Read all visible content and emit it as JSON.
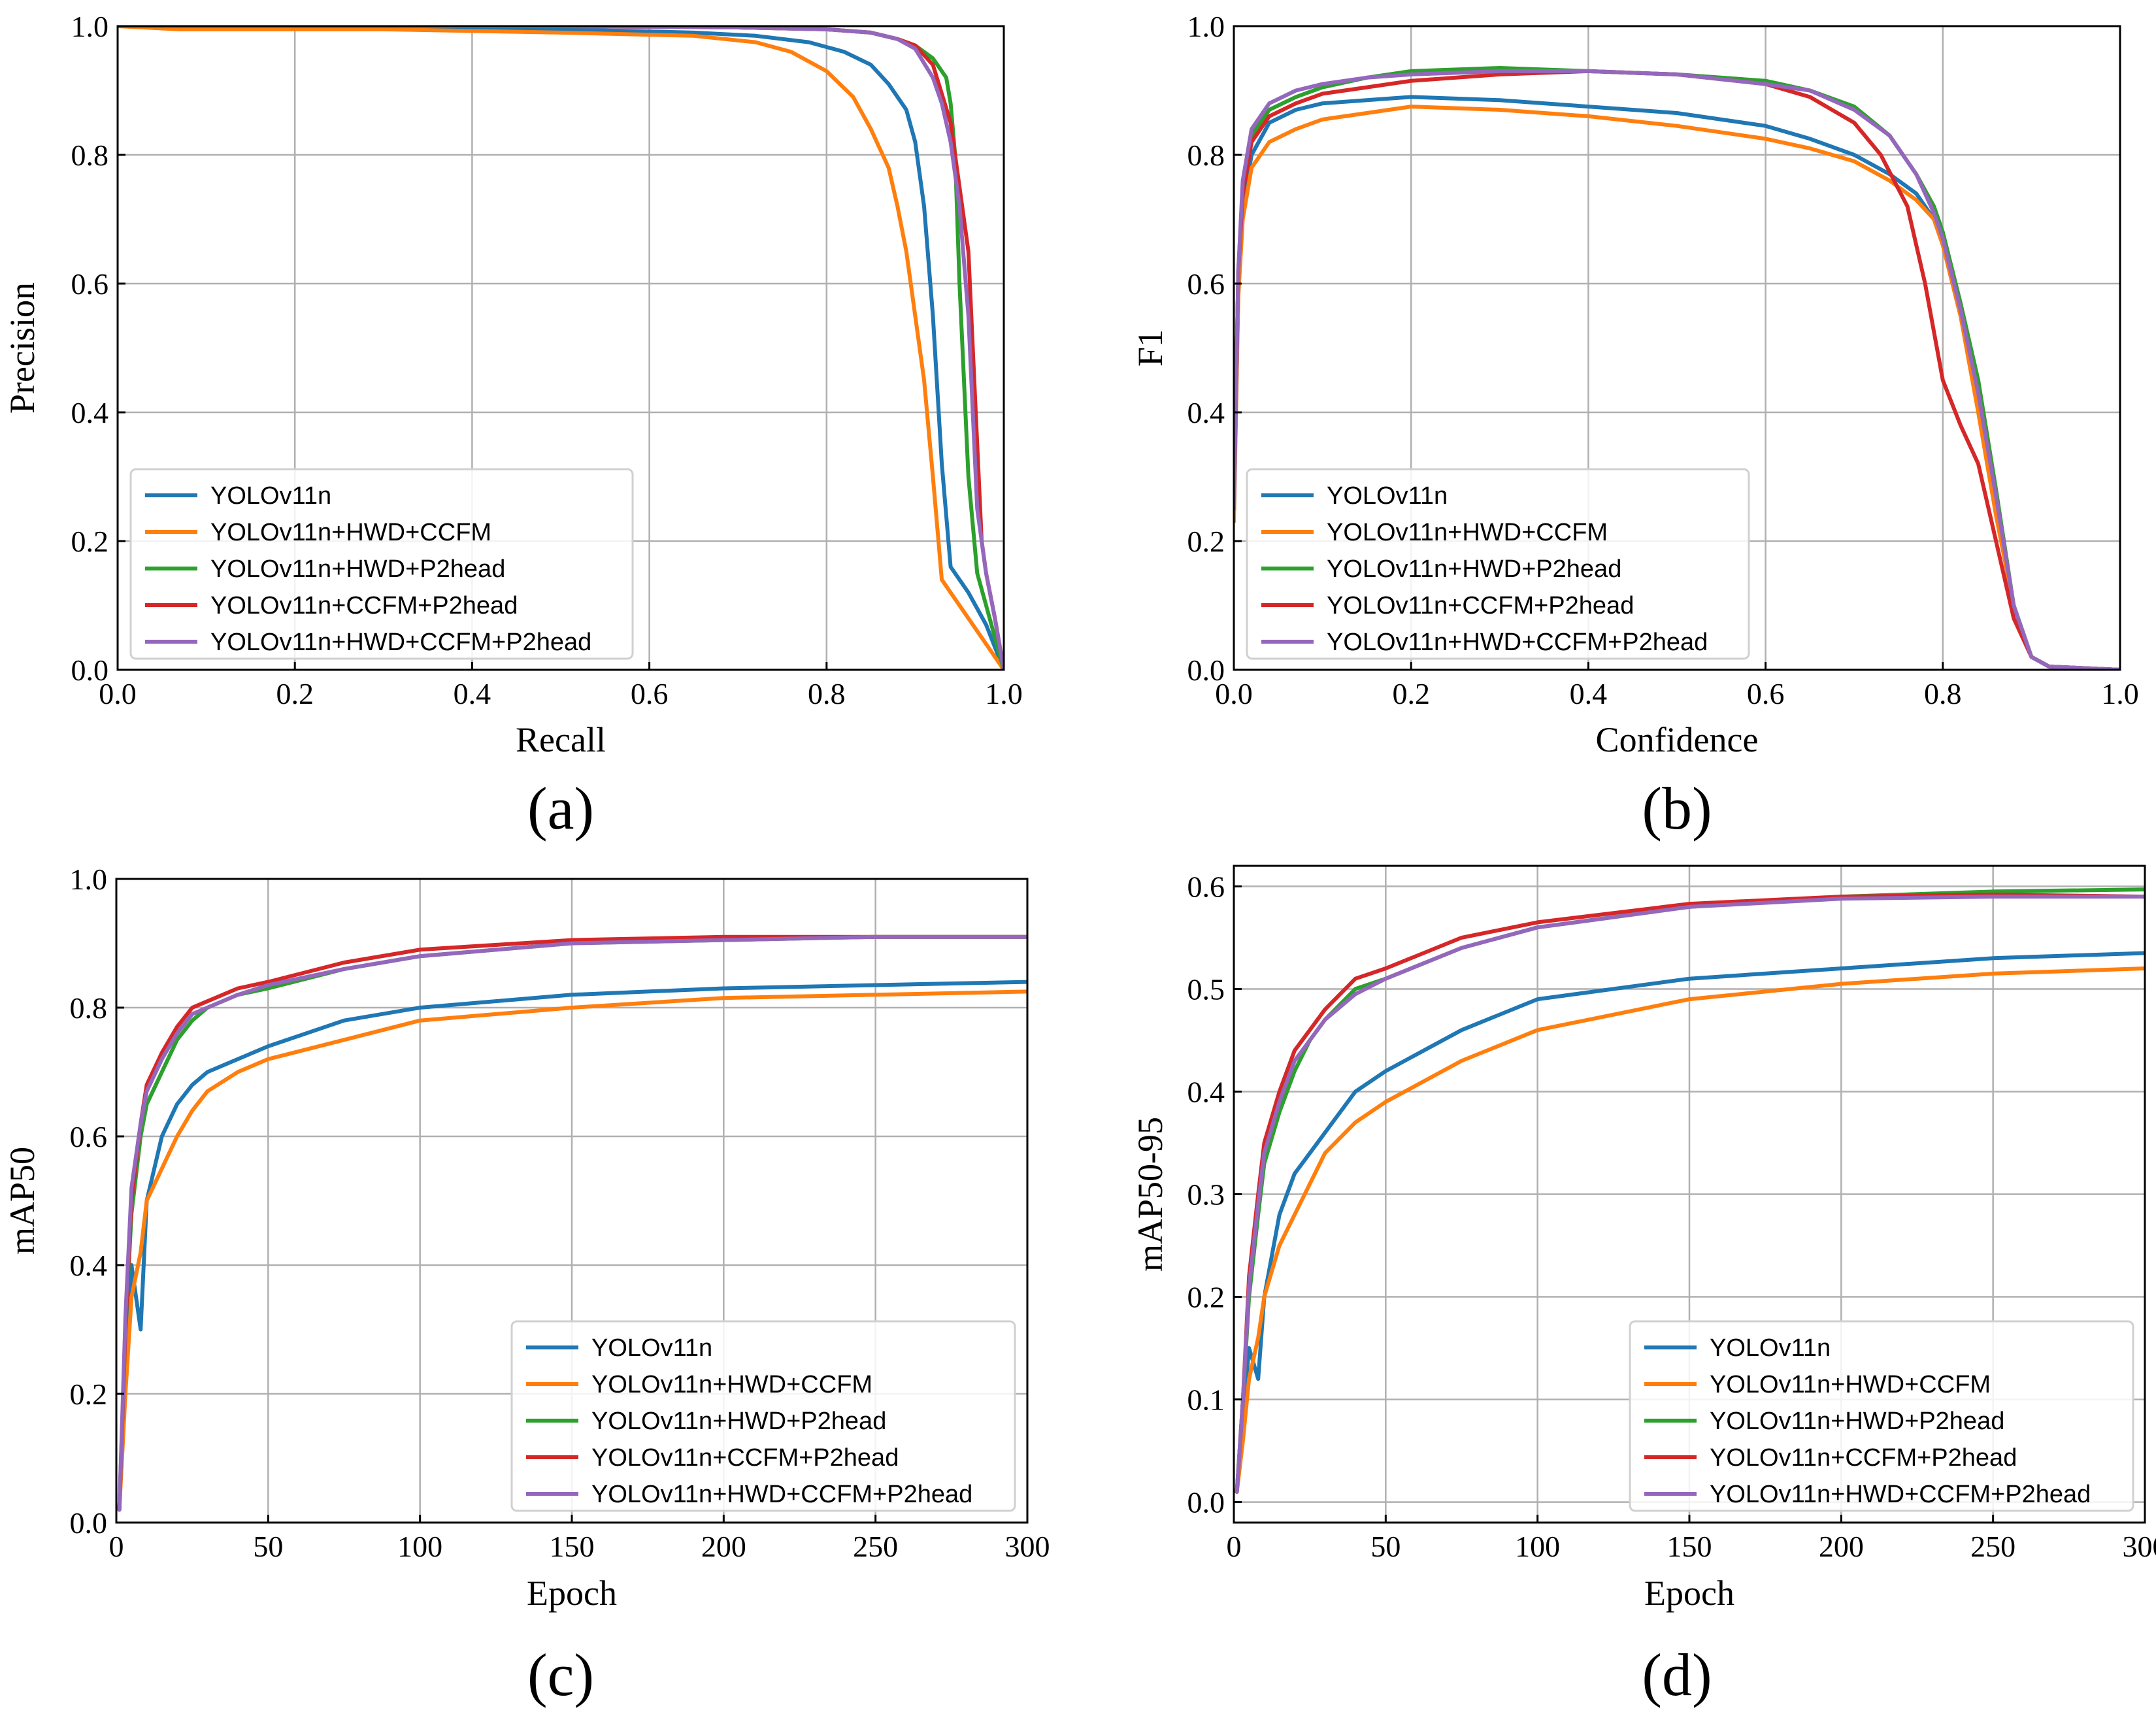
{
  "colors": {
    "YOLOv11n": "#1f77b4",
    "YOLOv11n+HWD+CCFM": "#ff7f0e",
    "YOLOv11n+HWD+P2head": "#2ca02c",
    "YOLOv11n+CCFM+P2head": "#d62728",
    "YOLOv11n+HWD+CCFM+P2head": "#9467bd"
  },
  "chart_data": [
    {
      "id": "a",
      "panel_label": "(a)",
      "type": "line",
      "title": "",
      "xlabel": "Recall",
      "ylabel": "Precision",
      "xlim": [
        0,
        1
      ],
      "ylim": [
        0,
        1
      ],
      "xticks": [
        0.0,
        0.2,
        0.4,
        0.6,
        0.8,
        1.0
      ],
      "xtick_labels": [
        "0.0",
        "0.2",
        "0.4",
        "0.6",
        "0.8",
        "1.0"
      ],
      "yticks": [
        0.0,
        0.2,
        0.4,
        0.6,
        0.8,
        1.0
      ],
      "ytick_labels": [
        "0.0",
        "0.2",
        "0.4",
        "0.6",
        "0.8",
        "1.0"
      ],
      "grid": true,
      "legend_position": "lower-left",
      "series": [
        {
          "name": "YOLOv11n",
          "x": [
            0.0,
            0.1,
            0.3,
            0.5,
            0.65,
            0.72,
            0.78,
            0.82,
            0.85,
            0.87,
            0.89,
            0.9,
            0.91,
            0.92,
            0.93,
            0.94,
            0.96,
            0.98,
            1.0
          ],
          "y": [
            1.0,
            1.0,
            0.998,
            0.995,
            0.99,
            0.985,
            0.975,
            0.96,
            0.94,
            0.91,
            0.87,
            0.82,
            0.72,
            0.55,
            0.32,
            0.16,
            0.12,
            0.07,
            0.0
          ]
        },
        {
          "name": "YOLOv11n+HWD+CCFM",
          "x": [
            0.0,
            0.07,
            0.3,
            0.5,
            0.65,
            0.72,
            0.76,
            0.8,
            0.83,
            0.85,
            0.87,
            0.88,
            0.89,
            0.9,
            0.91,
            0.92,
            0.93,
            0.94,
            0.96,
            0.98,
            1.0
          ],
          "y": [
            1.0,
            0.995,
            0.995,
            0.99,
            0.985,
            0.975,
            0.96,
            0.93,
            0.89,
            0.84,
            0.78,
            0.72,
            0.65,
            0.55,
            0.45,
            0.3,
            0.14,
            0.12,
            0.08,
            0.04,
            0.0
          ]
        },
        {
          "name": "YOLOv11n+HWD+P2head",
          "x": [
            0.0,
            0.2,
            0.5,
            0.7,
            0.8,
            0.85,
            0.88,
            0.9,
            0.92,
            0.93,
            0.935,
            0.94,
            0.945,
            0.95,
            0.955,
            0.96,
            0.97,
            0.98,
            1.0
          ],
          "y": [
            1.0,
            1.0,
            1.0,
            0.998,
            0.995,
            0.99,
            0.98,
            0.97,
            0.95,
            0.93,
            0.92,
            0.88,
            0.8,
            0.6,
            0.45,
            0.3,
            0.15,
            0.1,
            0.0
          ]
        },
        {
          "name": "YOLOv11n+CCFM+P2head",
          "x": [
            0.0,
            0.2,
            0.5,
            0.7,
            0.8,
            0.85,
            0.88,
            0.9,
            0.92,
            0.94,
            0.95,
            0.96,
            0.965,
            0.97,
            0.975,
            0.98,
            0.99,
            1.0
          ],
          "y": [
            1.0,
            1.0,
            1.0,
            0.998,
            0.995,
            0.99,
            0.98,
            0.97,
            0.94,
            0.85,
            0.75,
            0.65,
            0.5,
            0.35,
            0.2,
            0.15,
            0.08,
            0.0
          ]
        },
        {
          "name": "YOLOv11n+HWD+CCFM+P2head",
          "x": [
            0.0,
            0.2,
            0.5,
            0.7,
            0.8,
            0.85,
            0.88,
            0.9,
            0.92,
            0.93,
            0.94,
            0.95,
            0.96,
            0.965,
            0.97,
            0.98,
            0.99,
            1.0
          ],
          "y": [
            1.0,
            1.0,
            1.0,
            0.998,
            0.995,
            0.99,
            0.98,
            0.965,
            0.92,
            0.88,
            0.82,
            0.72,
            0.55,
            0.4,
            0.25,
            0.15,
            0.08,
            0.0
          ]
        }
      ]
    },
    {
      "id": "b",
      "panel_label": "(b)",
      "type": "line",
      "title": "",
      "xlabel": "Confidence",
      "ylabel": "F1",
      "xlim": [
        0,
        1
      ],
      "ylim": [
        0,
        1
      ],
      "xticks": [
        0.0,
        0.2,
        0.4,
        0.6,
        0.8,
        1.0
      ],
      "xtick_labels": [
        "0.0",
        "0.2",
        "0.4",
        "0.6",
        "0.8",
        "1.0"
      ],
      "yticks": [
        0.0,
        0.2,
        0.4,
        0.6,
        0.8,
        1.0
      ],
      "ytick_labels": [
        "0.0",
        "0.2",
        "0.4",
        "0.6",
        "0.8",
        "1.0"
      ],
      "grid": true,
      "legend_position": "lower-left",
      "series": [
        {
          "name": "YOLOv11n",
          "x": [
            0.0,
            0.005,
            0.01,
            0.02,
            0.04,
            0.07,
            0.1,
            0.15,
            0.2,
            0.3,
            0.4,
            0.5,
            0.6,
            0.65,
            0.7,
            0.74,
            0.77,
            0.79,
            0.8,
            0.82,
            0.84,
            0.86,
            0.88,
            0.9,
            0.92,
            1.0
          ],
          "y": [
            0.24,
            0.6,
            0.72,
            0.8,
            0.85,
            0.87,
            0.88,
            0.885,
            0.89,
            0.885,
            0.875,
            0.865,
            0.845,
            0.825,
            0.8,
            0.77,
            0.74,
            0.7,
            0.66,
            0.55,
            0.42,
            0.26,
            0.1,
            0.02,
            0.005,
            0.0
          ]
        },
        {
          "name": "YOLOv11n+HWD+CCFM",
          "x": [
            0.0,
            0.005,
            0.01,
            0.02,
            0.04,
            0.07,
            0.1,
            0.15,
            0.2,
            0.3,
            0.4,
            0.5,
            0.6,
            0.65,
            0.7,
            0.74,
            0.77,
            0.79,
            0.8,
            0.82,
            0.84,
            0.86,
            0.88,
            0.9,
            0.92,
            1.0
          ],
          "y": [
            0.23,
            0.58,
            0.7,
            0.78,
            0.82,
            0.84,
            0.855,
            0.865,
            0.875,
            0.87,
            0.86,
            0.845,
            0.825,
            0.81,
            0.79,
            0.76,
            0.73,
            0.7,
            0.66,
            0.55,
            0.4,
            0.24,
            0.1,
            0.02,
            0.005,
            0.0
          ]
        },
        {
          "name": "YOLOv11n+HWD+P2head",
          "x": [
            0.0,
            0.005,
            0.01,
            0.02,
            0.04,
            0.07,
            0.1,
            0.15,
            0.2,
            0.3,
            0.4,
            0.5,
            0.6,
            0.65,
            0.7,
            0.74,
            0.77,
            0.79,
            0.8,
            0.82,
            0.84,
            0.86,
            0.88,
            0.9,
            0.92,
            1.0
          ],
          "y": [
            0.25,
            0.62,
            0.75,
            0.83,
            0.87,
            0.89,
            0.905,
            0.92,
            0.93,
            0.935,
            0.93,
            0.925,
            0.915,
            0.9,
            0.875,
            0.83,
            0.77,
            0.72,
            0.68,
            0.57,
            0.45,
            0.28,
            0.1,
            0.02,
            0.005,
            0.0
          ]
        },
        {
          "name": "YOLOv11n+CCFM+P2head",
          "x": [
            0.0,
            0.005,
            0.01,
            0.02,
            0.04,
            0.07,
            0.1,
            0.15,
            0.2,
            0.3,
            0.4,
            0.5,
            0.6,
            0.65,
            0.7,
            0.73,
            0.76,
            0.78,
            0.8,
            0.82,
            0.84,
            0.86,
            0.88,
            0.9,
            0.92,
            1.0
          ],
          "y": [
            0.25,
            0.62,
            0.74,
            0.82,
            0.86,
            0.88,
            0.895,
            0.905,
            0.915,
            0.925,
            0.93,
            0.925,
            0.91,
            0.89,
            0.85,
            0.8,
            0.72,
            0.6,
            0.45,
            0.38,
            0.32,
            0.2,
            0.08,
            0.02,
            0.005,
            0.0
          ]
        },
        {
          "name": "YOLOv11n+HWD+CCFM+P2head",
          "x": [
            0.0,
            0.005,
            0.01,
            0.02,
            0.04,
            0.07,
            0.1,
            0.15,
            0.2,
            0.3,
            0.4,
            0.5,
            0.6,
            0.65,
            0.7,
            0.74,
            0.77,
            0.79,
            0.8,
            0.82,
            0.84,
            0.86,
            0.88,
            0.9,
            0.92,
            1.0
          ],
          "y": [
            0.25,
            0.62,
            0.76,
            0.84,
            0.88,
            0.9,
            0.91,
            0.92,
            0.925,
            0.93,
            0.93,
            0.925,
            0.91,
            0.9,
            0.87,
            0.83,
            0.77,
            0.71,
            0.67,
            0.56,
            0.43,
            0.27,
            0.1,
            0.02,
            0.005,
            0.0
          ]
        }
      ]
    },
    {
      "id": "c",
      "panel_label": "(c)",
      "type": "line",
      "title": "",
      "xlabel": "Epoch",
      "ylabel": "mAP50",
      "xlim": [
        0,
        300
      ],
      "ylim": [
        0,
        1
      ],
      "xticks": [
        0,
        50,
        100,
        150,
        200,
        250,
        300
      ],
      "xtick_labels": [
        "0",
        "50",
        "100",
        "150",
        "200",
        "250",
        "300"
      ],
      "yticks": [
        0.0,
        0.2,
        0.4,
        0.6,
        0.8,
        1.0
      ],
      "ytick_labels": [
        "0.0",
        "0.2",
        "0.4",
        "0.6",
        "0.8",
        "1.0"
      ],
      "grid": true,
      "legend_position": "lower-right",
      "series": [
        {
          "name": "YOLOv11n",
          "x": [
            1,
            3,
            5,
            8,
            10,
            15,
            20,
            25,
            30,
            40,
            50,
            75,
            100,
            150,
            200,
            250,
            300
          ],
          "y": [
            0.02,
            0.25,
            0.4,
            0.3,
            0.5,
            0.6,
            0.65,
            0.68,
            0.7,
            0.72,
            0.74,
            0.78,
            0.8,
            0.82,
            0.83,
            0.835,
            0.84
          ]
        },
        {
          "name": "YOLOv11n+HWD+CCFM",
          "x": [
            1,
            3,
            5,
            8,
            10,
            15,
            20,
            25,
            30,
            40,
            50,
            75,
            100,
            150,
            200,
            250,
            300
          ],
          "y": [
            0.02,
            0.2,
            0.35,
            0.42,
            0.5,
            0.55,
            0.6,
            0.64,
            0.67,
            0.7,
            0.72,
            0.75,
            0.78,
            0.8,
            0.815,
            0.82,
            0.825
          ]
        },
        {
          "name": "YOLOv11n+HWD+P2head",
          "x": [
            1,
            3,
            5,
            8,
            10,
            15,
            20,
            25,
            30,
            40,
            50,
            75,
            100,
            150,
            200,
            250,
            300
          ],
          "y": [
            0.02,
            0.3,
            0.48,
            0.6,
            0.65,
            0.7,
            0.75,
            0.78,
            0.8,
            0.82,
            0.83,
            0.86,
            0.88,
            0.9,
            0.905,
            0.91,
            0.91
          ]
        },
        {
          "name": "YOLOv11n+CCFM+P2head",
          "x": [
            1,
            3,
            5,
            8,
            10,
            15,
            20,
            25,
            30,
            40,
            50,
            75,
            100,
            150,
            200,
            250,
            300
          ],
          "y": [
            0.02,
            0.3,
            0.5,
            0.62,
            0.68,
            0.73,
            0.77,
            0.8,
            0.81,
            0.83,
            0.84,
            0.87,
            0.89,
            0.905,
            0.91,
            0.91,
            0.91
          ]
        },
        {
          "name": "YOLOv11n+HWD+CCFM+P2head",
          "x": [
            1,
            3,
            5,
            8,
            10,
            15,
            20,
            25,
            30,
            40,
            50,
            75,
            100,
            150,
            200,
            250,
            300
          ],
          "y": [
            0.02,
            0.32,
            0.52,
            0.62,
            0.67,
            0.72,
            0.76,
            0.79,
            0.8,
            0.82,
            0.835,
            0.86,
            0.88,
            0.9,
            0.905,
            0.91,
            0.91
          ]
        }
      ]
    },
    {
      "id": "d",
      "panel_label": "(d)",
      "type": "line",
      "title": "",
      "xlabel": "Epoch",
      "ylabel": "mAP50-95",
      "xlim": [
        0,
        300
      ],
      "ylim": [
        -0.02,
        0.62
      ],
      "xticks": [
        0,
        50,
        100,
        150,
        200,
        250,
        300
      ],
      "xtick_labels": [
        "0",
        "50",
        "100",
        "150",
        "200",
        "250",
        "300"
      ],
      "yticks": [
        0.0,
        0.1,
        0.2,
        0.3,
        0.4,
        0.5,
        0.6
      ],
      "ytick_labels": [
        "0.0",
        "0.1",
        "0.2",
        "0.3",
        "0.4",
        "0.5",
        "0.6"
      ],
      "grid": true,
      "legend_position": "lower-right",
      "series": [
        {
          "name": "YOLOv11n",
          "x": [
            1,
            3,
            5,
            8,
            10,
            15,
            20,
            25,
            30,
            40,
            50,
            75,
            100,
            150,
            200,
            250,
            300
          ],
          "y": [
            0.01,
            0.08,
            0.15,
            0.12,
            0.2,
            0.28,
            0.32,
            0.34,
            0.36,
            0.4,
            0.42,
            0.46,
            0.49,
            0.51,
            0.52,
            0.53,
            0.535
          ]
        },
        {
          "name": "YOLOv11n+HWD+CCFM",
          "x": [
            1,
            3,
            5,
            8,
            10,
            15,
            20,
            25,
            30,
            40,
            50,
            75,
            100,
            150,
            200,
            250,
            300
          ],
          "y": [
            0.01,
            0.06,
            0.12,
            0.16,
            0.2,
            0.25,
            0.28,
            0.31,
            0.34,
            0.37,
            0.39,
            0.43,
            0.46,
            0.49,
            0.505,
            0.515,
            0.52
          ]
        },
        {
          "name": "YOLOv11n+HWD+P2head",
          "x": [
            1,
            3,
            5,
            8,
            10,
            15,
            20,
            25,
            30,
            40,
            50,
            75,
            100,
            150,
            200,
            250,
            300
          ],
          "y": [
            0.01,
            0.1,
            0.2,
            0.28,
            0.33,
            0.38,
            0.42,
            0.45,
            0.47,
            0.5,
            0.51,
            0.54,
            0.56,
            0.58,
            0.59,
            0.595,
            0.597
          ]
        },
        {
          "name": "YOLOv11n+CCFM+P2head",
          "x": [
            1,
            3,
            5,
            8,
            10,
            15,
            20,
            25,
            30,
            40,
            50,
            75,
            100,
            150,
            200,
            250,
            300
          ],
          "y": [
            0.01,
            0.1,
            0.22,
            0.3,
            0.35,
            0.4,
            0.44,
            0.46,
            0.48,
            0.51,
            0.52,
            0.55,
            0.565,
            0.583,
            0.59,
            0.592,
            0.59
          ]
        },
        {
          "name": "YOLOv11n+HWD+CCFM+P2head",
          "x": [
            1,
            3,
            5,
            8,
            10,
            15,
            20,
            25,
            30,
            40,
            50,
            75,
            100,
            150,
            200,
            250,
            300
          ],
          "y": [
            0.01,
            0.1,
            0.21,
            0.29,
            0.34,
            0.39,
            0.43,
            0.45,
            0.47,
            0.495,
            0.51,
            0.54,
            0.56,
            0.58,
            0.588,
            0.59,
            0.59
          ]
        }
      ]
    }
  ]
}
